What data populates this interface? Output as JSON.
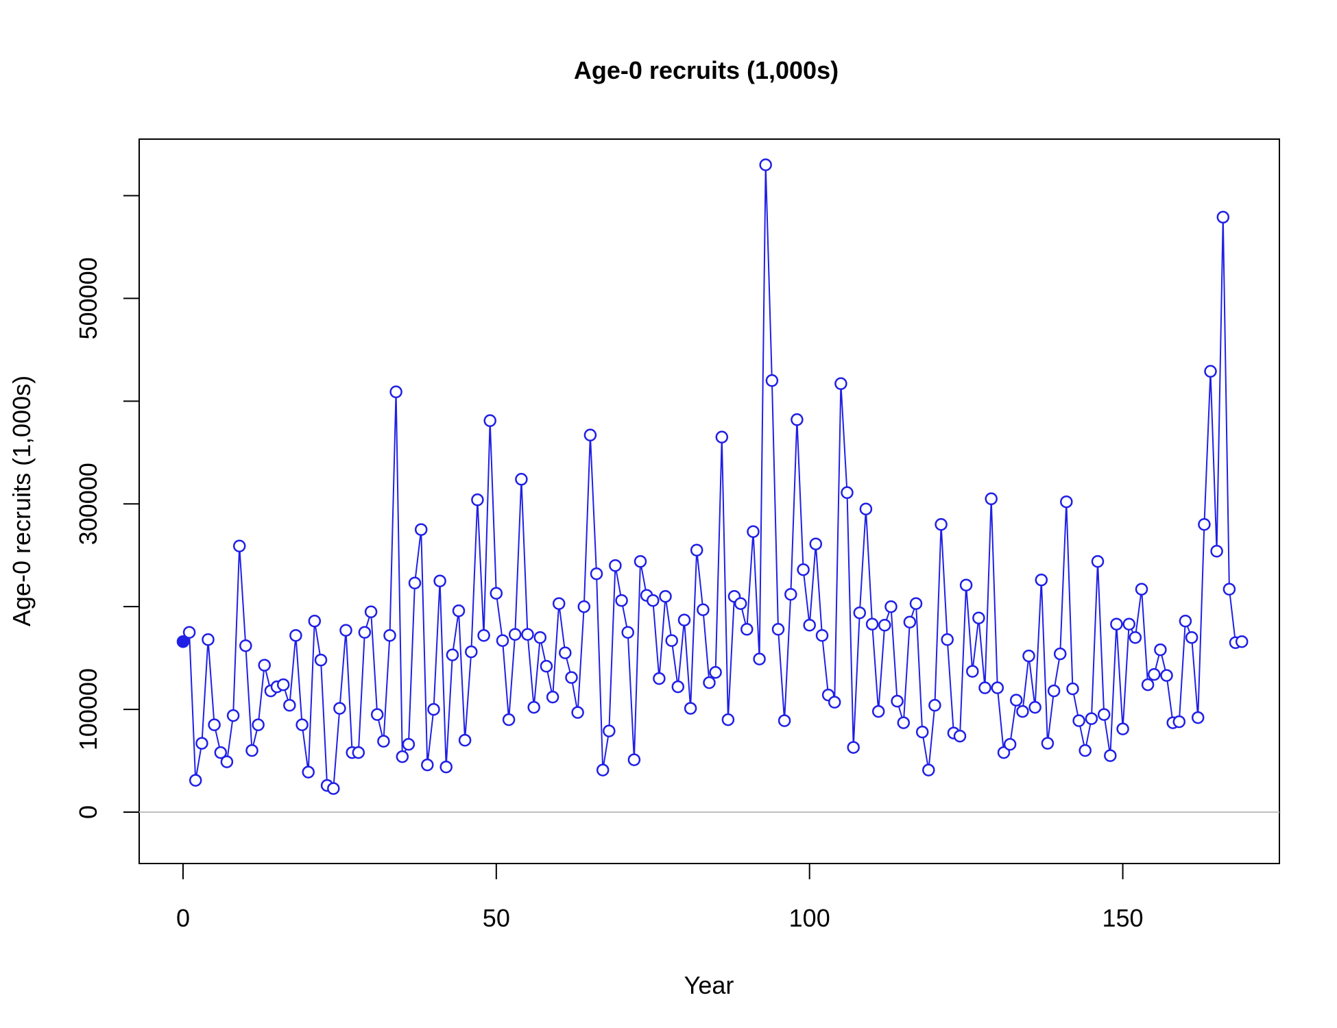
{
  "chart_data": {
    "type": "line",
    "title": "Age-0 recruits (1,000s)",
    "xlabel": "Year",
    "ylabel": "Age-0 recruits (1,000s)",
    "xlim": [
      -7,
      175
    ],
    "ylim": [
      -50000,
      655000
    ],
    "xticks": [
      0,
      50,
      100,
      150
    ],
    "yticks": [
      0,
      100000,
      200000,
      300000,
      400000,
      500000,
      600000
    ],
    "ytick_labels": [
      "0",
      "100000",
      "",
      "300000",
      "",
      "500000",
      ""
    ],
    "reference_line_y": 0,
    "grid": false,
    "series_color": "#1f1fe6",
    "reference_color": "#bfbfbf",
    "first_point_filled": true,
    "series": [
      {
        "x": [
          0,
          1,
          2,
          3,
          4,
          5,
          6,
          7,
          8,
          9,
          10,
          11,
          12,
          13,
          14,
          15,
          16,
          17,
          18,
          19,
          20,
          21,
          22,
          23,
          24,
          25,
          26,
          27,
          28,
          29,
          30,
          31,
          32,
          33,
          34,
          35,
          36,
          37,
          38,
          39,
          40,
          41,
          42,
          43,
          44,
          45,
          46,
          47,
          48,
          49,
          50,
          51,
          52,
          53,
          54,
          55,
          56,
          57,
          58,
          59,
          60,
          61,
          62,
          63,
          64,
          65,
          66,
          67,
          68,
          69,
          70,
          71,
          72,
          73,
          74,
          75,
          76,
          77,
          78,
          79,
          80,
          81,
          82,
          83,
          84,
          85,
          86,
          87,
          88,
          89,
          90,
          91,
          92,
          93,
          94,
          95,
          96,
          97,
          98,
          99,
          100,
          101,
          102,
          103,
          104,
          105,
          106,
          107,
          108,
          109,
          110,
          111,
          112,
          113,
          114,
          115,
          116,
          117,
          118,
          119,
          120,
          121,
          122,
          123,
          124,
          125,
          126,
          127,
          128,
          129,
          130,
          131,
          132,
          133,
          134,
          135,
          136,
          137,
          138,
          139,
          140,
          141,
          142,
          143,
          144,
          145,
          146,
          147,
          148,
          149,
          150,
          151,
          152,
          153,
          154,
          155,
          156,
          157,
          158,
          159,
          160,
          161,
          162,
          163,
          164,
          165,
          166,
          167,
          168,
          169
        ],
        "y": [
          166000,
          175000,
          31000,
          67000,
          168000,
          85000,
          58000,
          49000,
          94000,
          259000,
          162000,
          60000,
          85000,
          143000,
          118000,
          122000,
          124000,
          104000,
          172000,
          85000,
          39000,
          186000,
          148000,
          26000,
          23000,
          101000,
          177000,
          58000,
          58000,
          175000,
          195000,
          95000,
          69000,
          172000,
          409000,
          54000,
          66000,
          223000,
          275000,
          46000,
          100000,
          225000,
          44000,
          153000,
          196000,
          70000,
          156000,
          304000,
          172000,
          381000,
          213000,
          167000,
          90000,
          173000,
          324000,
          173000,
          102000,
          170000,
          142000,
          112000,
          203000,
          155000,
          131000,
          97000,
          200000,
          367000,
          232000,
          41000,
          79000,
          240000,
          206000,
          175000,
          51000,
          244000,
          211000,
          206000,
          130000,
          210000,
          167000,
          122000,
          187000,
          101000,
          255000,
          197000,
          126000,
          136000,
          365000,
          90000,
          210000,
          203000,
          178000,
          273000,
          149000,
          630000,
          420000,
          178000,
          89000,
          212000,
          382000,
          236000,
          182000,
          261000,
          172000,
          114000,
          107000,
          417000,
          311000,
          63000,
          194000,
          295000,
          183000,
          98000,
          182000,
          200000,
          108000,
          87000,
          185000,
          203000,
          78000,
          41000,
          104000,
          280000,
          168000,
          77000,
          74000,
          221000,
          137000,
          189000,
          121000,
          305000,
          121000,
          58000,
          66000,
          109000,
          98000,
          152000,
          102000,
          226000,
          67000,
          118000,
          154000,
          302000,
          120000,
          89000,
          60000,
          91000,
          244000,
          95000,
          55000,
          183000,
          81000,
          183000,
          170000,
          217000,
          124000,
          134000,
          158000,
          133000,
          87000,
          88000,
          186000,
          170000,
          92000,
          280000,
          429000,
          254000,
          579000,
          217000,
          165000,
          166000
        ]
      }
    ]
  }
}
